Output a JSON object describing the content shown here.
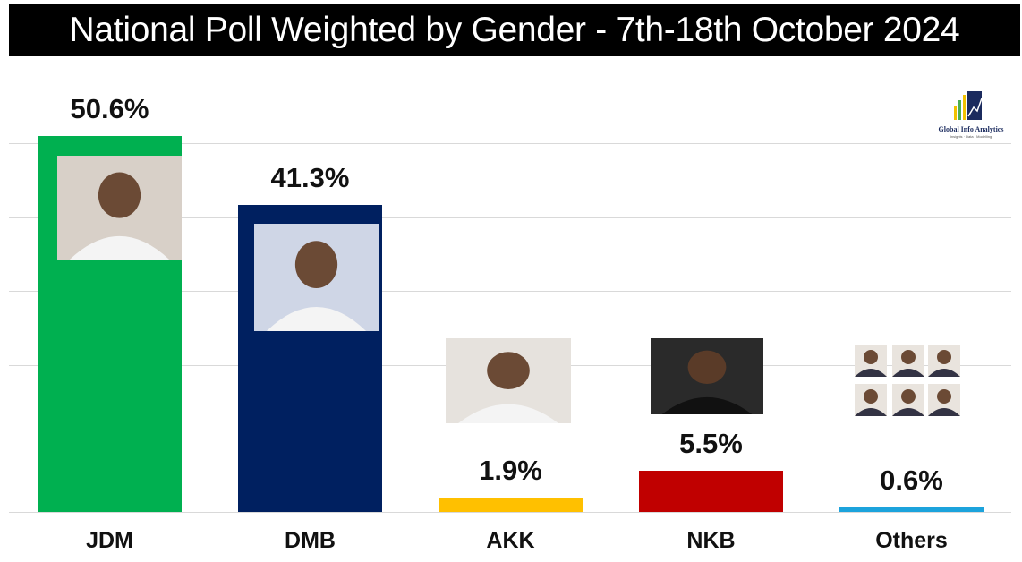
{
  "title": "National Poll Weighted by Gender - 7th-18th October 2024",
  "logo": {
    "name": "Global Info Analytics",
    "tagline": "Insights · Data · Modelling"
  },
  "chart_data": {
    "type": "bar",
    "title": "National Poll Weighted by Gender - 7th-18th October 2024",
    "categories": [
      "JDM",
      "DMB",
      "AKK",
      "NKB",
      "Others"
    ],
    "values": [
      50.6,
      41.3,
      1.9,
      5.5,
      0.6
    ],
    "value_labels": [
      "50.6%",
      "41.3%",
      "1.9%",
      "5.5%",
      "0.6%"
    ],
    "colors": [
      "#00b050",
      "#002060",
      "#ffc000",
      "#c00000",
      "#1ca3dc"
    ],
    "ylim": [
      0,
      60
    ],
    "grid": true,
    "legend": "none",
    "xlabel": "",
    "ylabel": ""
  }
}
